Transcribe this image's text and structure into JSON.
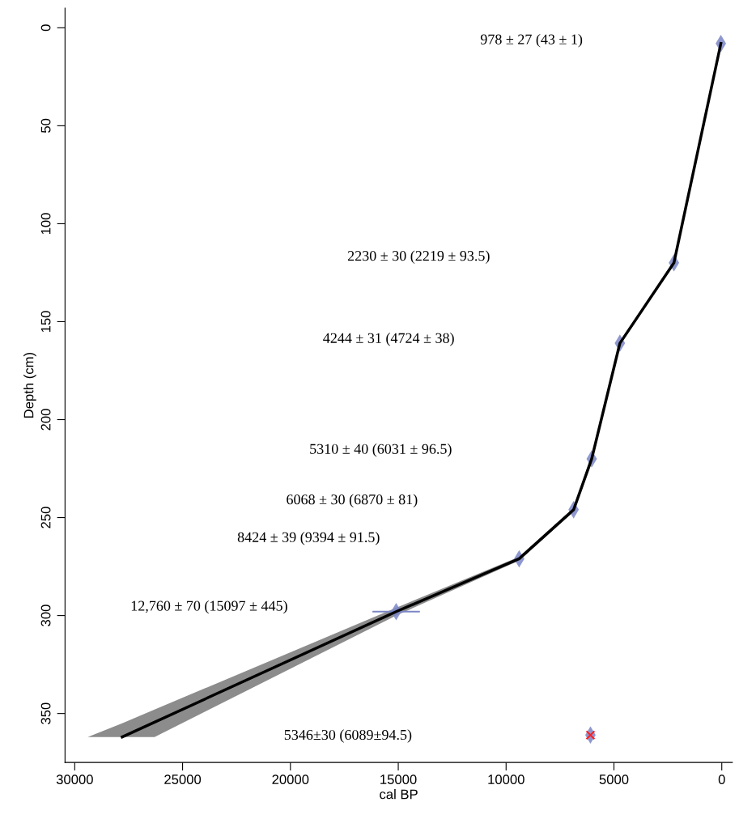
{
  "chart_data": {
    "type": "line",
    "xlabel": "cal BP",
    "ylabel": "Depth (cm)",
    "xlim": [
      30450,
      -490
    ],
    "ylim": [
      375,
      -10
    ],
    "xticks": [
      30000,
      25000,
      20000,
      15000,
      10000,
      5000,
      0
    ],
    "yticks": [
      0,
      50,
      100,
      150,
      200,
      250,
      300,
      350
    ],
    "grid": false,
    "legend": false,
    "series": [
      {
        "color": "#000000",
        "marker": "none",
        "line_style": "solid",
        "x": [
          43,
          2219,
          4724,
          6031,
          6870,
          9394,
          15097,
          26300,
          27800,
          29400
        ],
        "values": [
          8,
          120,
          161,
          220,
          246,
          271,
          298,
          354.4,
          362,
          null
        ],
        "lower": [
          7,
          119,
          160,
          218,
          245,
          270,
          296,
          348,
          355,
          362
        ],
        "upper": [
          9,
          121,
          162,
          222,
          247,
          272,
          300,
          362,
          362,
          362
        ]
      },
      {
        "type": "scatter",
        "color": "#7b86c6",
        "marker": "diamond",
        "x": [
          43,
          2219,
          4724,
          6031,
          6870,
          9394,
          15097,
          6089
        ],
        "values": [
          8,
          120,
          161,
          220,
          246,
          271,
          298,
          361
        ],
        "xerrors": [
          null,
          null,
          null,
          null,
          null,
          null,
          1100,
          null
        ]
      },
      {
        "type": "scatter",
        "color": "#ff2020",
        "marker": "cross",
        "x": [
          6089
        ],
        "values": [
          361
        ]
      }
    ],
    "annotations": [
      "978 ± 27 (43 ± 1)",
      "2230 ± 30 (2219 ± 93.5)",
      "4244 ± 31 (4724 ± 38)",
      "5310 ± 40 (6031 ± 96.5)",
      "6068 ± 30 (6870 ± 81)",
      "8424 ± 39 (9394 ± 91.5)",
      "12,760 ± 70 (15097 ± 445)",
      "5346±30 (6089±94.5)"
    ]
  }
}
